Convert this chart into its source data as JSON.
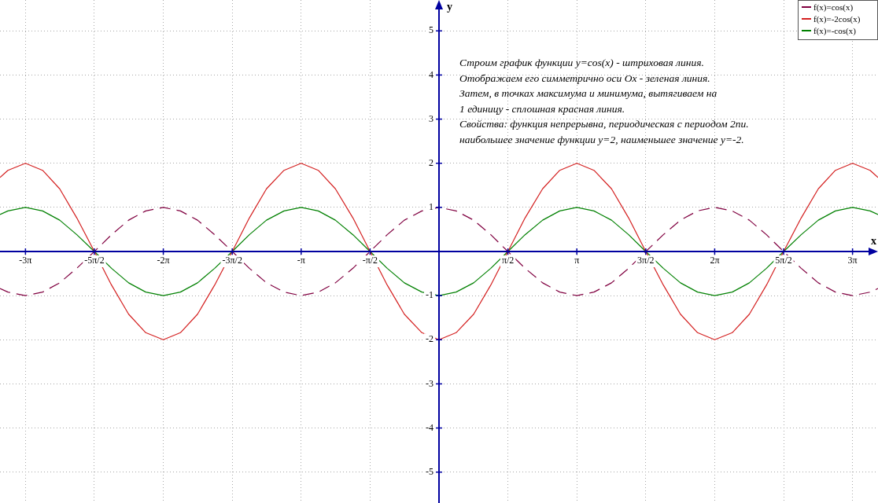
{
  "chart_data": {
    "type": "line",
    "xlabel": "x",
    "ylabel": "y",
    "annotations": [
      "Строим график функции y=cos(x) - штриховая линия.",
      "Отображаем его симметрично оси Ox - зеленая линия.",
      "Затем, в точках максимума и минимума, вытягиваем на",
      "1 единицу - сплошная красная линия.",
      "Свойства: функция непрерывна, периодическая с периодом 2пи.",
      "наибольшее значение функции y=2, наименьшее значение y=-2."
    ],
    "x": [
      -10,
      -9.82,
      -9.42,
      -9.03,
      -8.64,
      -8.25,
      -7.85,
      -7.46,
      -7.07,
      -6.68,
      -6.28,
      -5.89,
      -5.5,
      -5.11,
      -4.71,
      -4.32,
      -3.93,
      -3.53,
      -3.14,
      -2.75,
      -2.36,
      -1.96,
      -1.57,
      -1.18,
      -0.79,
      -0.39,
      0,
      0.39,
      0.79,
      1.18,
      1.57,
      1.96,
      2.36,
      2.75,
      3.14,
      3.53,
      3.93,
      4.32,
      4.71,
      5.11,
      5.5,
      5.89,
      6.28,
      6.68,
      7.07,
      7.46,
      7.85,
      8.25,
      8.64,
      9.03,
      9.42,
      9.82,
      10
    ],
    "series": [
      {
        "name": "f(x)=cos(x)",
        "color": "#800040",
        "line_style": "dashed",
        "values": [
          -0.84,
          -0.92,
          -1,
          -0.92,
          -0.71,
          -0.38,
          0,
          0.38,
          0.71,
          0.92,
          1,
          0.92,
          0.71,
          0.38,
          0,
          -0.38,
          -0.71,
          -0.92,
          -1,
          -0.92,
          -0.71,
          -0.38,
          0,
          0.38,
          0.71,
          0.92,
          1,
          0.92,
          0.71,
          0.38,
          0,
          -0.38,
          -0.71,
          -0.92,
          -1,
          -0.92,
          -0.71,
          -0.38,
          0,
          0.38,
          0.71,
          0.92,
          1,
          0.92,
          0.71,
          0.38,
          0,
          -0.38,
          -0.71,
          -0.92,
          -1,
          -0.92,
          -0.84
        ]
      },
      {
        "name": "f(x)=-2cos(x)",
        "color": "#d42020",
        "line_style": "solid",
        "values": [
          1.68,
          1.84,
          2,
          1.84,
          1.42,
          0.76,
          0,
          -0.76,
          -1.42,
          -1.84,
          -2,
          -1.84,
          -1.42,
          -0.76,
          0,
          0.76,
          1.42,
          1.84,
          2,
          1.84,
          1.42,
          0.76,
          0,
          -0.76,
          -1.42,
          -1.84,
          -2,
          -1.84,
          -1.42,
          -0.76,
          0,
          0.76,
          1.42,
          1.84,
          2,
          1.84,
          1.42,
          0.76,
          0,
          -0.76,
          -1.42,
          -1.84,
          -2,
          -1.84,
          -1.42,
          -0.76,
          0,
          0.76,
          1.42,
          1.84,
          2,
          1.84,
          1.68
        ]
      },
      {
        "name": "f(x)=-cos(x)",
        "color": "#008000",
        "line_style": "solid",
        "values": [
          0.84,
          0.92,
          1,
          0.92,
          0.71,
          0.38,
          0,
          -0.38,
          -0.71,
          -0.92,
          -1,
          -0.92,
          -0.71,
          -0.38,
          0,
          0.38,
          0.71,
          0.92,
          1,
          0.92,
          0.71,
          0.38,
          0,
          -0.38,
          -0.71,
          -0.92,
          -1,
          -0.92,
          -0.71,
          -0.38,
          0,
          0.38,
          0.71,
          0.92,
          1,
          0.92,
          0.71,
          0.38,
          0,
          -0.38,
          -0.71,
          -0.92,
          -1,
          -0.92,
          -0.71,
          -0.38,
          0,
          0.38,
          0.71,
          0.92,
          1,
          0.92,
          0.84
        ]
      }
    ],
    "xlim": [
      -10,
      10
    ],
    "ylim": [
      -5.7,
      5.7
    ],
    "xticks": [
      {
        "value": -9.42,
        "label": "-3π"
      },
      {
        "value": -7.85,
        "label": "-5π/2"
      },
      {
        "value": -6.28,
        "label": "-2π"
      },
      {
        "value": -4.71,
        "label": "-3π/2"
      },
      {
        "value": -3.14,
        "label": "-π"
      },
      {
        "value": -1.57,
        "label": "-π/2"
      },
      {
        "value": 1.57,
        "label": "π/2"
      },
      {
        "value": 3.14,
        "label": "π"
      },
      {
        "value": 4.71,
        "label": "3π/2"
      },
      {
        "value": 6.28,
        "label": "2π"
      },
      {
        "value": 7.85,
        "label": "5π/2"
      },
      {
        "value": 9.42,
        "label": "3π"
      }
    ],
    "yticks": [
      -5,
      -4,
      -3,
      -2,
      -1,
      {
        "value": 0,
        "label": null
      },
      1,
      2,
      3,
      4,
      5
    ],
    "grid": true,
    "legend": "top right",
    "marker": "none"
  }
}
